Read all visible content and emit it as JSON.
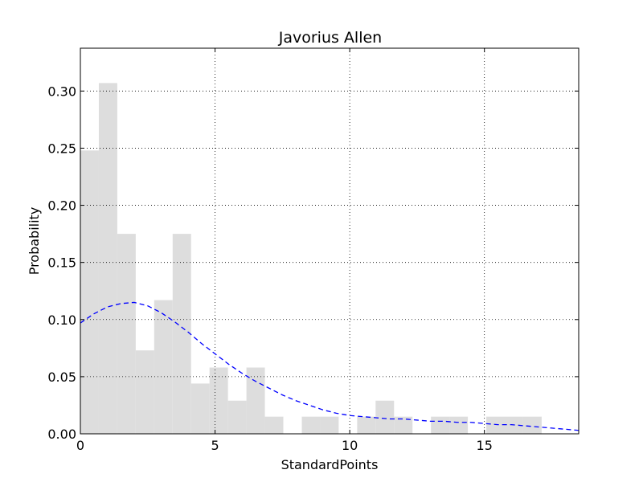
{
  "chart_data": {
    "type": "bar",
    "title": "Javorius Allen",
    "xlabel": "StandardPoints",
    "ylabel": "Probability",
    "xlim": [
      0,
      18.5
    ],
    "ylim": [
      0,
      0.3375
    ],
    "xticks": [
      0,
      5,
      10,
      15
    ],
    "xtick_labels": [
      "0",
      "5",
      "10",
      "15"
    ],
    "yticks": [
      0.0,
      0.05,
      0.1,
      0.15,
      0.2,
      0.25,
      0.3
    ],
    "ytick_labels": [
      "0.00",
      "0.05",
      "0.10",
      "0.15",
      "0.20",
      "0.25",
      "0.30"
    ],
    "grid": true,
    "histogram": {
      "bin_edges": [
        0.0,
        0.685,
        1.37,
        2.055,
        2.74,
        3.425,
        4.11,
        4.795,
        5.48,
        6.165,
        6.85,
        7.535,
        8.22,
        8.905,
        9.59,
        10.275,
        10.96,
        11.645,
        12.33,
        13.015,
        13.7,
        14.385,
        15.07,
        15.755,
        16.44,
        17.125
      ],
      "values": [
        0.248,
        0.307,
        0.175,
        0.073,
        0.117,
        0.175,
        0.044,
        0.058,
        0.029,
        0.058,
        0.015,
        0.0,
        0.015,
        0.015,
        0.0,
        0.015,
        0.029,
        0.015,
        0.0,
        0.015,
        0.015,
        0.0,
        0.015,
        0.015,
        0.015
      ],
      "color": "#dddddd"
    },
    "curve": {
      "x": [
        0,
        0.5,
        1,
        1.5,
        2,
        2.5,
        3,
        3.5,
        4,
        4.5,
        5,
        5.5,
        6,
        6.5,
        7,
        7.5,
        8,
        8.5,
        9,
        9.5,
        10,
        10.5,
        11,
        11.5,
        12,
        12.5,
        13,
        13.5,
        14,
        14.5,
        15,
        15.5,
        16,
        16.5,
        17,
        17.5,
        18,
        18.5
      ],
      "y": [
        0.097,
        0.105,
        0.111,
        0.114,
        0.115,
        0.112,
        0.106,
        0.098,
        0.089,
        0.079,
        0.07,
        0.061,
        0.053,
        0.046,
        0.04,
        0.034,
        0.029,
        0.025,
        0.021,
        0.018,
        0.016,
        0.015,
        0.014,
        0.013,
        0.013,
        0.012,
        0.011,
        0.011,
        0.01,
        0.01,
        0.009,
        0.008,
        0.008,
        0.007,
        0.006,
        0.005,
        0.004,
        0.003
      ],
      "color": "#0000ff",
      "style": "dashed"
    }
  }
}
